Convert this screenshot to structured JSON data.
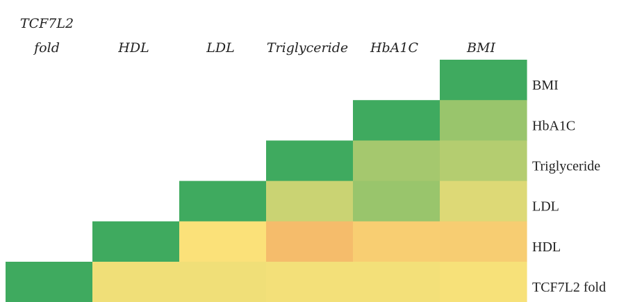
{
  "chart_data": {
    "type": "heatmap",
    "title": "",
    "layout": "lower-triangular correlation matrix",
    "column_labels": [
      "TCF7L2 fold",
      "HDL",
      "LDL",
      "Triglyceride",
      "HbA1C",
      "BMI"
    ],
    "row_labels": [
      "BMI",
      "HbA1C",
      "Triglyceride",
      "LDL",
      "HDL",
      "TCF7L2 fold"
    ],
    "value_range": [
      -1,
      1
    ],
    "color_scale": [
      "#F0A060",
      "#FBE27A",
      "#3FAA5F"
    ],
    "values": [
      [
        null,
        null,
        null,
        null,
        null,
        1.0
      ],
      [
        null,
        null,
        null,
        null,
        1.0,
        0.52
      ],
      [
        null,
        null,
        null,
        1.0,
        0.46,
        0.38
      ],
      [
        null,
        null,
        1.0,
        0.26,
        0.52,
        0.16
      ],
      [
        null,
        1.0,
        -0.02,
        -0.58,
        -0.3,
        -0.32
      ],
      [
        1.0,
        0.06,
        0.06,
        0.04,
        0.04,
        0.02
      ]
    ]
  }
}
